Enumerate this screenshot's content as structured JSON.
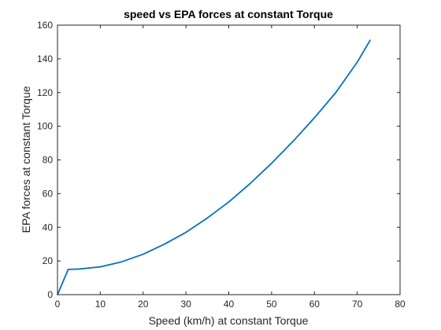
{
  "chart_data": {
    "type": "line",
    "title": "speed vs EPA forces at constant Torque",
    "xlabel": "Speed (km/h) at constant Torque",
    "ylabel": "EPA forces at constant Torque",
    "xlim": [
      0,
      80
    ],
    "ylim": [
      0,
      160
    ],
    "xticks": [
      0,
      10,
      20,
      30,
      40,
      50,
      60,
      70,
      80
    ],
    "yticks": [
      0,
      20,
      40,
      60,
      80,
      100,
      120,
      140,
      160
    ],
    "grid": false,
    "legend": "none",
    "series": [
      {
        "color": "#0072BD",
        "x": [
          0,
          2.5,
          5,
          10,
          15,
          20,
          25,
          30,
          35,
          40,
          45,
          50,
          55,
          60,
          65,
          70,
          73
        ],
        "y": [
          0,
          15,
          15.2,
          16.5,
          19.5,
          24,
          30,
          37,
          45.5,
          55,
          66,
          78,
          91,
          105,
          120,
          138,
          151
        ]
      }
    ]
  }
}
